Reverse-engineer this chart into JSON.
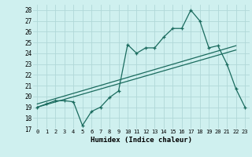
{
  "xlabel": "Humidex (Indice chaleur)",
  "bg_color": "#cff0ef",
  "grid_color": "#b0d8d8",
  "line_color": "#1a6b5e",
  "xlim": [
    -0.5,
    23.5
  ],
  "ylim": [
    17,
    28.5
  ],
  "yticks": [
    17,
    18,
    19,
    20,
    21,
    22,
    23,
    24,
    25,
    26,
    27,
    28
  ],
  "xticks": [
    0,
    1,
    2,
    3,
    4,
    5,
    6,
    7,
    8,
    9,
    10,
    11,
    12,
    13,
    14,
    15,
    16,
    17,
    18,
    19,
    20,
    21,
    22,
    23
  ],
  "main_data": [
    19.0,
    19.3,
    19.6,
    19.6,
    19.5,
    17.3,
    18.6,
    19.0,
    19.9,
    20.5,
    24.8,
    24.0,
    24.5,
    24.5,
    25.5,
    26.3,
    26.3,
    28.0,
    27.0,
    24.5,
    24.7,
    23.0,
    20.7,
    19.0
  ],
  "trend1_x": [
    0,
    22
  ],
  "trend1_y": [
    19.0,
    24.3
  ],
  "trend2_x": [
    0,
    22
  ],
  "trend2_y": [
    19.3,
    24.7
  ]
}
